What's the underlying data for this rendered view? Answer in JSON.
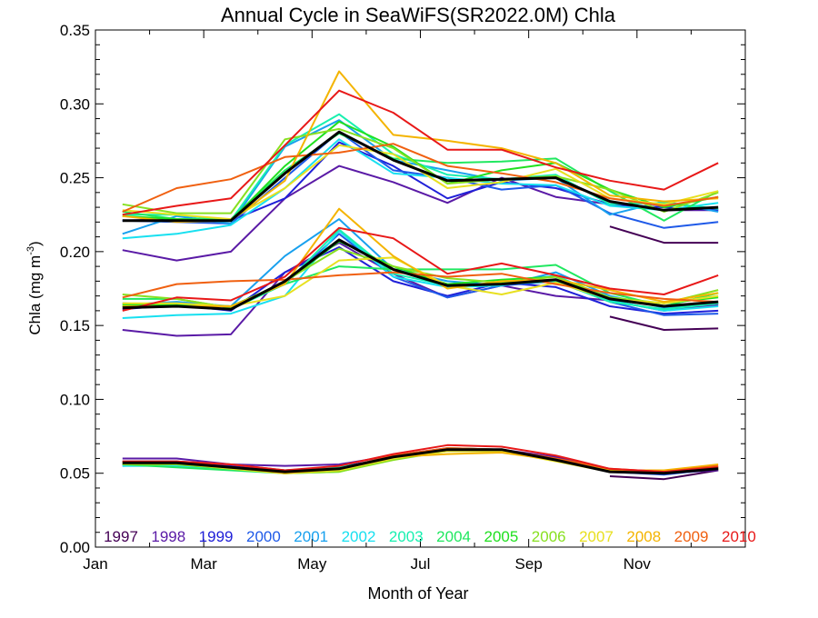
{
  "chart_data": {
    "type": "line",
    "title": "Annual Cycle in SeaWiFS(SR2022.0M) Chla",
    "xlabel": "Month of Year",
    "ylabel": "Chla (mg m",
    "ylabel_exp": "-3",
    "ylabel_close": ")",
    "xlim": [
      1,
      13
    ],
    "ylim": [
      0,
      0.35
    ],
    "xticks": [
      {
        "value": 1,
        "label": "Jan"
      },
      {
        "value": 3,
        "label": "Mar"
      },
      {
        "value": 5,
        "label": "May"
      },
      {
        "value": 7,
        "label": "Jul"
      },
      {
        "value": 9,
        "label": "Sep"
      },
      {
        "value": 11,
        "label": "Nov"
      }
    ],
    "yticks": [
      {
        "value": 0.0,
        "label": "0.00"
      },
      {
        "value": 0.05,
        "label": "0.05"
      },
      {
        "value": 0.1,
        "label": "0.10"
      },
      {
        "value": 0.15,
        "label": "0.15"
      },
      {
        "value": 0.2,
        "label": "0.20"
      },
      {
        "value": 0.25,
        "label": "0.25"
      },
      {
        "value": 0.3,
        "label": "0.30"
      },
      {
        "value": 0.35,
        "label": "0.35"
      }
    ],
    "legend_placement": "bottom",
    "x": [
      1.5,
      2.5,
      3.5,
      4.5,
      5.5,
      6.5,
      7.5,
      8.5,
      9.5,
      10.5,
      11.5,
      12.5
    ],
    "groups": [
      "upper",
      "middle",
      "lower"
    ],
    "series": [
      {
        "name": "1997",
        "color": "#440055",
        "upper": [
          null,
          null,
          null,
          null,
          null,
          null,
          null,
          null,
          null,
          0.217,
          0.206,
          0.206
        ],
        "middle": [
          null,
          null,
          null,
          null,
          null,
          null,
          null,
          null,
          null,
          0.156,
          0.147,
          0.148
        ],
        "lower": [
          null,
          null,
          null,
          null,
          null,
          null,
          null,
          null,
          null,
          0.048,
          0.046,
          0.052
        ]
      },
      {
        "name": "1998",
        "color": "#5a1aa6",
        "upper": [
          0.201,
          0.194,
          0.2,
          0.236,
          0.258,
          0.247,
          0.233,
          0.25,
          0.237,
          0.232,
          0.228,
          0.228
        ],
        "middle": [
          0.147,
          0.143,
          0.144,
          0.186,
          0.206,
          0.185,
          0.169,
          0.177,
          0.17,
          0.167,
          0.16,
          0.164
        ],
        "lower": [
          0.06,
          0.06,
          0.056,
          0.055,
          0.056,
          0.062,
          0.067,
          0.066,
          0.061,
          0.052,
          0.05,
          0.052
        ]
      },
      {
        "name": "1999",
        "color": "#2020d8",
        "upper": [
          0.221,
          0.222,
          0.221,
          0.236,
          0.274,
          0.258,
          0.236,
          0.247,
          0.243,
          0.232,
          0.23,
          0.228
        ],
        "middle": [
          0.161,
          0.164,
          0.16,
          0.186,
          0.203,
          0.18,
          0.17,
          0.179,
          0.176,
          0.163,
          0.158,
          0.16
        ],
        "lower": [
          0.058,
          0.058,
          0.055,
          0.052,
          0.054,
          0.061,
          0.066,
          0.066,
          0.06,
          0.051,
          0.05,
          0.053
        ]
      },
      {
        "name": "2000",
        "color": "#1f5ae8",
        "upper": [
          0.221,
          0.22,
          0.219,
          0.25,
          0.281,
          0.255,
          0.25,
          0.242,
          0.245,
          0.226,
          0.216,
          0.22
        ],
        "middle": [
          0.165,
          0.164,
          0.163,
          0.178,
          0.212,
          0.183,
          0.169,
          0.177,
          0.18,
          0.166,
          0.157,
          0.158
        ],
        "lower": [
          0.056,
          0.057,
          0.054,
          0.051,
          0.053,
          0.061,
          0.066,
          0.066,
          0.059,
          0.051,
          0.049,
          0.053
        ]
      },
      {
        "name": "2001",
        "color": "#18a0ee",
        "upper": [
          0.212,
          0.224,
          0.219,
          0.271,
          0.289,
          0.262,
          0.255,
          0.248,
          0.25,
          0.225,
          0.234,
          0.227
        ],
        "middle": [
          0.164,
          0.166,
          0.163,
          0.197,
          0.222,
          0.188,
          0.18,
          0.177,
          0.186,
          0.17,
          0.162,
          0.165
        ],
        "lower": [
          0.055,
          0.056,
          0.053,
          0.052,
          0.053,
          0.06,
          0.066,
          0.066,
          0.059,
          0.052,
          0.051,
          0.053
        ]
      },
      {
        "name": "2002",
        "color": "#18e0f0",
        "upper": [
          0.209,
          0.212,
          0.218,
          0.243,
          0.276,
          0.253,
          0.25,
          0.246,
          0.245,
          0.231,
          0.228,
          0.233
        ],
        "middle": [
          0.155,
          0.157,
          0.158,
          0.17,
          0.214,
          0.183,
          0.176,
          0.177,
          0.184,
          0.167,
          0.16,
          0.163
        ],
        "lower": [
          0.055,
          0.055,
          0.053,
          0.051,
          0.053,
          0.06,
          0.066,
          0.066,
          0.059,
          0.052,
          0.051,
          0.054
        ]
      },
      {
        "name": "2003",
        "color": "#18f0b0",
        "upper": [
          0.225,
          0.225,
          0.221,
          0.272,
          0.293,
          0.266,
          0.252,
          0.249,
          0.252,
          0.232,
          0.233,
          0.229
        ],
        "middle": [
          0.163,
          0.163,
          0.161,
          0.178,
          0.215,
          0.185,
          0.177,
          0.178,
          0.18,
          0.166,
          0.161,
          0.165
        ],
        "lower": [
          0.056,
          0.056,
          0.053,
          0.051,
          0.054,
          0.06,
          0.066,
          0.066,
          0.059,
          0.052,
          0.051,
          0.054
        ]
      },
      {
        "name": "2004",
        "color": "#20e860",
        "upper": [
          0.227,
          0.222,
          0.222,
          0.255,
          0.28,
          0.263,
          0.26,
          0.261,
          0.263,
          0.241,
          0.221,
          0.241
        ],
        "middle": [
          0.168,
          0.168,
          0.162,
          0.178,
          0.19,
          0.188,
          0.188,
          0.188,
          0.191,
          0.172,
          0.163,
          0.172
        ],
        "lower": [
          0.056,
          0.054,
          0.052,
          0.05,
          0.051,
          0.06,
          0.066,
          0.065,
          0.059,
          0.051,
          0.051,
          0.053
        ]
      },
      {
        "name": "2005",
        "color": "#20e020",
        "upper": [
          0.224,
          0.222,
          0.221,
          0.258,
          0.288,
          0.271,
          0.246,
          0.255,
          0.26,
          0.242,
          0.23,
          0.237
        ],
        "middle": [
          0.164,
          0.164,
          0.163,
          0.179,
          0.207,
          0.19,
          0.178,
          0.181,
          0.183,
          0.168,
          0.165,
          0.169
        ],
        "lower": [
          0.056,
          0.056,
          0.053,
          0.05,
          0.052,
          0.06,
          0.067,
          0.066,
          0.059,
          0.051,
          0.05,
          0.053
        ]
      },
      {
        "name": "2006",
        "color": "#88e020",
        "upper": [
          0.232,
          0.226,
          0.226,
          0.276,
          0.283,
          0.27,
          0.246,
          0.249,
          0.251,
          0.242,
          0.227,
          0.24
        ],
        "middle": [
          0.171,
          0.168,
          0.162,
          0.18,
          0.202,
          0.19,
          0.182,
          0.179,
          0.183,
          0.169,
          0.165,
          0.174
        ],
        "lower": [
          0.056,
          0.056,
          0.053,
          0.05,
          0.051,
          0.059,
          0.065,
          0.065,
          0.059,
          0.051,
          0.05,
          0.054
        ]
      },
      {
        "name": "2007",
        "color": "#e8e020",
        "upper": [
          0.228,
          0.225,
          0.222,
          0.243,
          0.272,
          0.266,
          0.243,
          0.247,
          0.256,
          0.236,
          0.232,
          0.241
        ],
        "middle": [
          0.165,
          0.165,
          0.163,
          0.17,
          0.194,
          0.196,
          0.177,
          0.171,
          0.179,
          0.168,
          0.165,
          0.17
        ],
        "lower": [
          0.057,
          0.057,
          0.053,
          0.05,
          0.052,
          0.06,
          0.065,
          0.065,
          0.058,
          0.051,
          0.05,
          0.053
        ]
      },
      {
        "name": "2008",
        "color": "#f4b400",
        "upper": [
          0.224,
          0.22,
          0.221,
          0.248,
          0.322,
          0.279,
          0.275,
          0.27,
          0.26,
          0.238,
          0.234,
          0.236
        ],
        "middle": [
          0.163,
          0.163,
          0.163,
          0.178,
          0.229,
          0.197,
          0.175,
          0.18,
          0.181,
          0.174,
          0.166,
          0.172
        ],
        "lower": [
          0.057,
          0.057,
          0.054,
          0.05,
          0.053,
          0.061,
          0.063,
          0.064,
          0.059,
          0.052,
          0.052,
          0.056
        ]
      },
      {
        "name": "2009",
        "color": "#f06010",
        "upper": [
          0.227,
          0.243,
          0.249,
          0.264,
          0.267,
          0.273,
          0.258,
          0.253,
          0.247,
          0.236,
          0.231,
          0.237
        ],
        "middle": [
          0.169,
          0.178,
          0.18,
          0.181,
          0.184,
          0.186,
          0.183,
          0.185,
          0.178,
          0.172,
          0.168,
          0.166
        ],
        "lower": [
          0.058,
          0.058,
          0.056,
          0.052,
          0.053,
          0.062,
          0.067,
          0.066,
          0.06,
          0.053,
          0.051,
          0.055
        ]
      },
      {
        "name": "2010",
        "color": "#e81818",
        "upper": [
          0.225,
          0.231,
          0.236,
          0.272,
          0.309,
          0.294,
          0.269,
          0.269,
          0.257,
          0.248,
          0.242,
          0.26
        ],
        "middle": [
          0.16,
          0.169,
          0.167,
          0.183,
          0.216,
          0.209,
          0.185,
          0.192,
          0.184,
          0.175,
          0.171,
          0.184
        ],
        "lower": [
          0.058,
          0.058,
          0.056,
          0.052,
          0.055,
          0.063,
          0.069,
          0.068,
          0.062,
          0.053,
          0.051,
          0.054
        ]
      },
      {
        "color": "#000000",
        "width": 3,
        "upper": [
          0.221,
          0.221,
          0.221,
          0.253,
          0.281,
          0.262,
          0.248,
          0.249,
          0.25,
          0.234,
          0.228,
          0.23
        ],
        "middle": [
          0.162,
          0.163,
          0.161,
          0.18,
          0.208,
          0.188,
          0.177,
          0.178,
          0.181,
          0.168,
          0.163,
          0.166
        ],
        "lower": [
          0.057,
          0.057,
          0.054,
          0.051,
          0.053,
          0.061,
          0.066,
          0.066,
          0.059,
          0.051,
          0.05,
          0.053
        ]
      }
    ]
  }
}
